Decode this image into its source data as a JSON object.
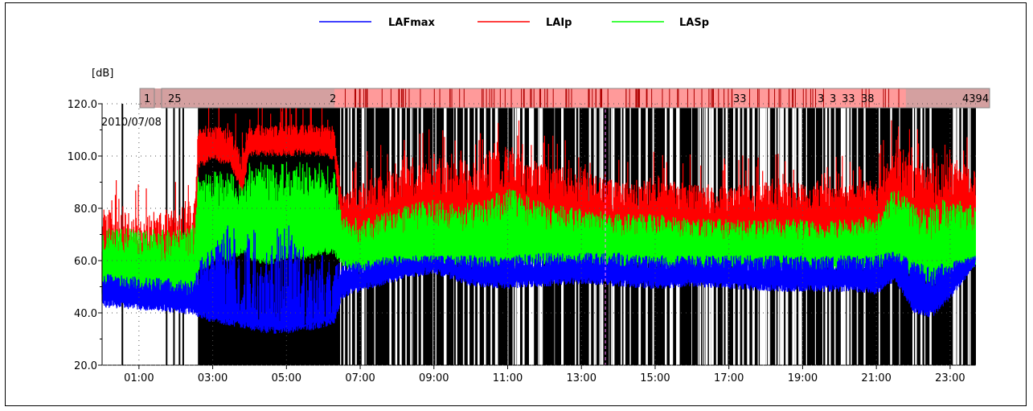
{
  "chart_data": {
    "type": "line",
    "ylabel": "[dB]",
    "date_label": "2010/07/08",
    "ylim": [
      20,
      120
    ],
    "xlim_hours": [
      0,
      23.7
    ],
    "y_ticks": [
      "120.0",
      "100.0",
      "80.0",
      "60.0",
      "40.0",
      "20.0"
    ],
    "y_tick_values": [
      120,
      100,
      80,
      60,
      40,
      20
    ],
    "x_ticks": [
      "01:00",
      "03:00",
      "05:00",
      "07:00",
      "09:00",
      "11:00",
      "13:00",
      "15:00",
      "17:00",
      "19:00",
      "21:00",
      "23:00"
    ],
    "x_tick_values": [
      1,
      3,
      5,
      7,
      9,
      11,
      13,
      15,
      17,
      19,
      21,
      23
    ],
    "legend_position": "top-center",
    "grid": true,
    "series": [
      {
        "name": "LAFmax",
        "color": "#0000ff",
        "x": [
          0,
          1,
          2,
          2.5,
          2.6,
          3,
          3.5,
          3.8,
          4,
          4.5,
          5,
          5.5,
          6,
          6.3,
          6.5,
          7,
          8,
          9,
          10,
          11,
          12,
          13,
          14,
          15,
          16,
          17,
          18,
          19,
          20,
          21,
          21.5,
          22,
          22.5,
          23,
          23.7
        ],
        "lower": [
          42,
          41,
          40,
          39,
          38,
          36,
          35,
          34,
          33,
          32,
          32,
          33,
          34,
          36,
          45,
          48,
          52,
          55,
          50,
          49,
          50,
          51,
          50,
          49,
          50,
          49,
          48,
          48,
          48,
          47,
          52,
          40,
          38,
          45,
          58
        ],
        "upper": [
          55,
          54,
          53,
          52,
          60,
          65,
          78,
          60,
          75,
          70,
          78,
          65,
          62,
          58,
          60,
          60,
          62,
          62,
          62,
          62,
          63,
          63,
          63,
          62,
          62,
          62,
          62,
          62,
          62,
          62,
          64,
          60,
          58,
          60,
          62
        ]
      },
      {
        "name": "LAIp",
        "color": "#ff0000",
        "x": [
          0,
          1,
          2,
          2.5,
          2.6,
          3,
          3.5,
          3.8,
          4,
          4.5,
          5,
          5.5,
          6,
          6.3,
          6.5,
          7,
          8,
          9,
          10,
          11,
          12,
          13,
          14,
          15,
          16,
          17,
          18,
          19,
          20,
          21,
          21.5,
          22,
          22.5,
          23,
          23.7
        ],
        "lower": [
          45,
          44,
          43,
          42,
          95,
          98,
          96,
          85,
          100,
          100,
          100,
          100,
          100,
          98,
          70,
          62,
          64,
          66,
          64,
          64,
          65,
          65,
          64,
          64,
          64,
          63,
          63,
          63,
          63,
          63,
          66,
          58,
          56,
          62,
          64
        ],
        "upper": [
          80,
          78,
          80,
          82,
          112,
          112,
          110,
          100,
          112,
          112,
          112,
          112,
          112,
          110,
          85,
          90,
          95,
          100,
          98,
          105,
          98,
          95,
          90,
          92,
          90,
          88,
          90,
          90,
          88,
          92,
          105,
          100,
          95,
          100,
          95
        ]
      },
      {
        "name": "LASp",
        "color": "#00ff00",
        "x": [
          0,
          1,
          2,
          2.5,
          2.6,
          3,
          3.5,
          3.8,
          4,
          4.5,
          5,
          5.5,
          6,
          6.3,
          6.5,
          7,
          8,
          9,
          10,
          11,
          12,
          13,
          14,
          15,
          16,
          17,
          18,
          19,
          20,
          21,
          21.5,
          22,
          22.5,
          23,
          23.7
        ],
        "lower": [
          45,
          44,
          43,
          42,
          55,
          58,
          60,
          62,
          60,
          58,
          60,
          60,
          62,
          62,
          58,
          55,
          57,
          58,
          57,
          57,
          58,
          58,
          57,
          57,
          57,
          56,
          56,
          56,
          56,
          56,
          58,
          52,
          50,
          55,
          57
        ],
        "upper": [
          74,
          72,
          72,
          74,
          92,
          95,
          94,
          88,
          98,
          98,
          98,
          98,
          98,
          96,
          78,
          76,
          80,
          84,
          82,
          88,
          82,
          80,
          78,
          78,
          76,
          76,
          76,
          76,
          76,
          78,
          88,
          82,
          80,
          86,
          80
        ]
      }
    ],
    "markers": [
      "1",
      "25",
      "2",
      "33",
      "3",
      "3",
      "33",
      "38",
      "4394"
    ]
  }
}
